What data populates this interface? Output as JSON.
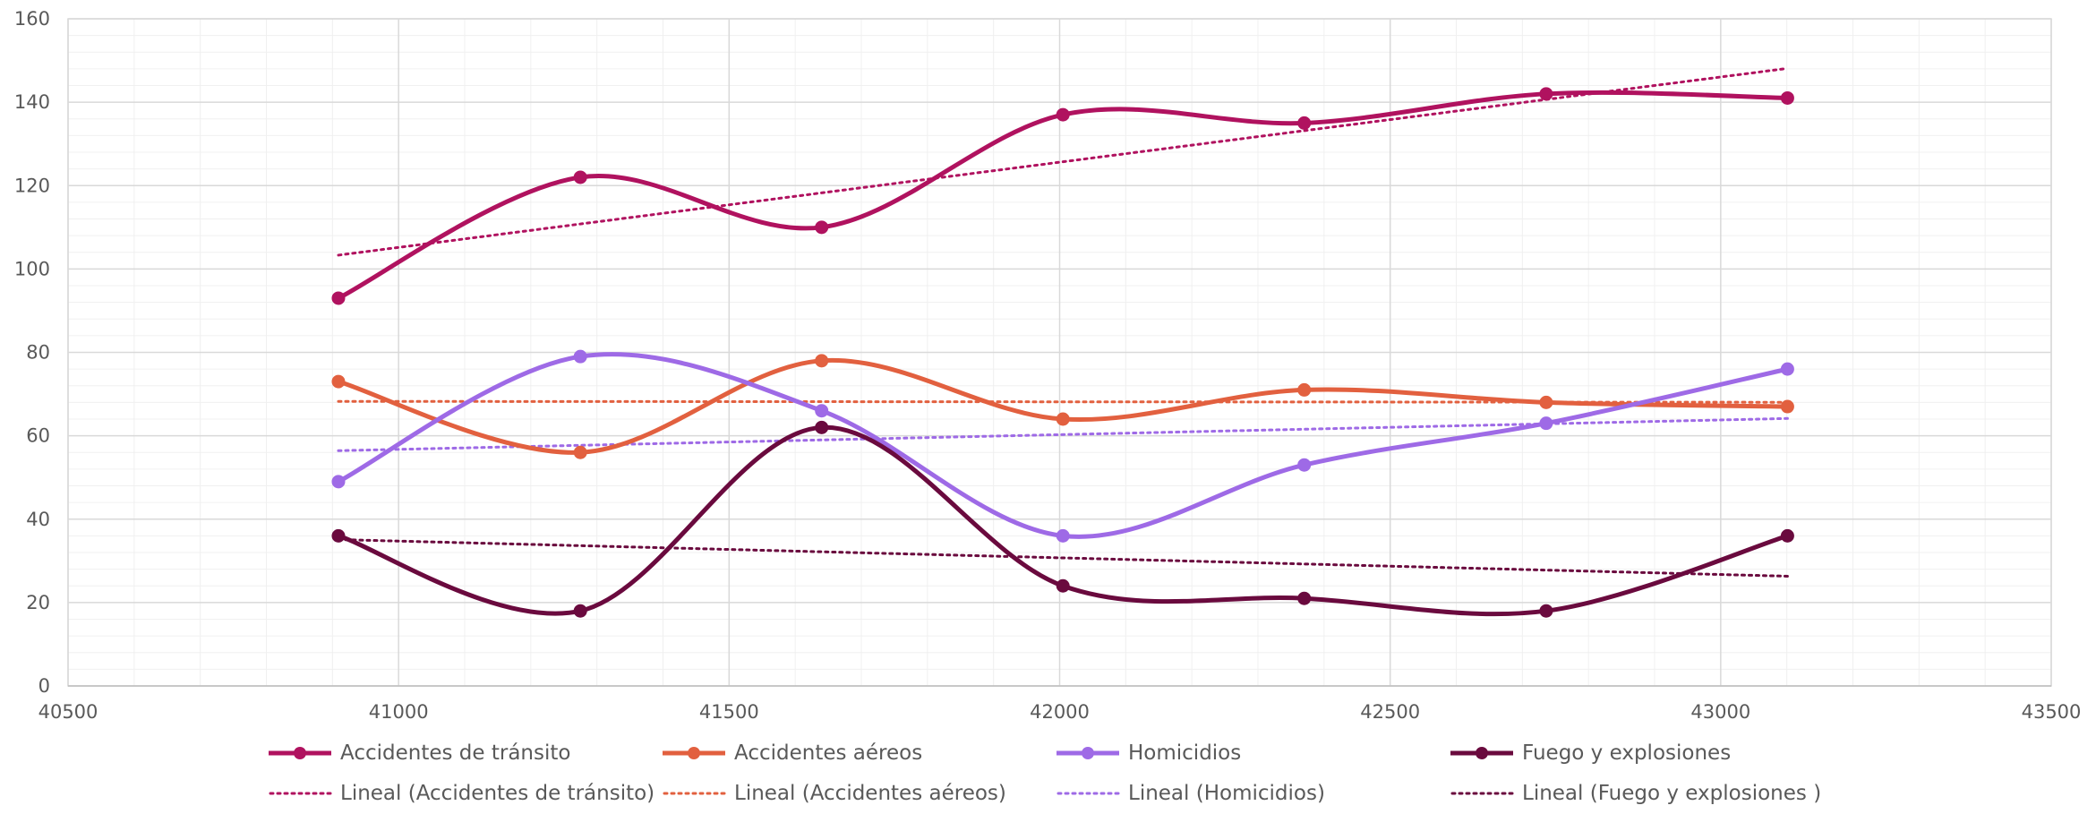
{
  "chart_data": {
    "type": "line",
    "title": "",
    "xlabel": "",
    "ylabel": "",
    "xlim": [
      40500,
      43500
    ],
    "ylim": [
      0,
      160
    ],
    "x_ticks": [
      "40500",
      "41000",
      "41500",
      "42000",
      "42500",
      "43000",
      "43500"
    ],
    "y_ticks": [
      "0",
      "20",
      "40",
      "60",
      "80",
      "100",
      "120",
      "140",
      "160"
    ],
    "grid": true,
    "legend_position": "bottom",
    "x": [
      40909,
      41275,
      41640,
      42005,
      42370,
      42736,
      43101
    ],
    "series": [
      {
        "name": "Accidentes de tránsito",
        "color": "#b0125f",
        "values": [
          93,
          122,
          110,
          137,
          135,
          142,
          141
        ]
      },
      {
        "name": "Accidentes aéreos",
        "color": "#e2603f",
        "values": [
          73,
          56,
          78,
          64,
          71,
          68,
          67
        ]
      },
      {
        "name": "Homicidios",
        "color": "#9e6ae6",
        "values": [
          49,
          79,
          66,
          36,
          53,
          63,
          76
        ]
      },
      {
        "name": "Fuego y explosiones",
        "color": "#6a0a3e",
        "values": [
          36,
          18,
          62,
          24,
          21,
          18,
          36
        ]
      }
    ],
    "trendlines": [
      {
        "name": "Lineal (Accidentes de tránsito)",
        "color": "#b0125f",
        "of": 0
      },
      {
        "name": "Lineal (Accidentes aéreos)",
        "color": "#e2603f",
        "of": 1
      },
      {
        "name": "Lineal (Homicidios)",
        "color": "#9e6ae6",
        "of": 2
      },
      {
        "name": "Lineal (Fuego y explosiones )",
        "color": "#6a0a3e",
        "of": 3
      }
    ]
  }
}
